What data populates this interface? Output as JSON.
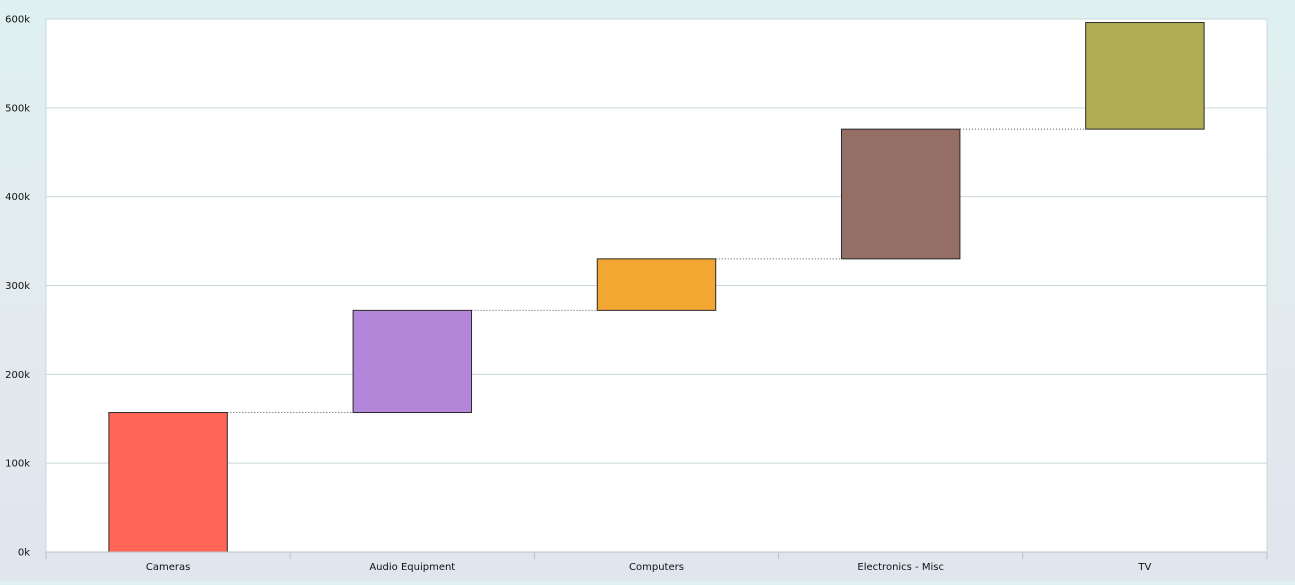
{
  "chart_data": {
    "type": "waterfall",
    "categories": [
      "Cameras",
      "Audio Equipment",
      "Computers",
      "Electronics - Misc",
      "TV"
    ],
    "series": [
      {
        "values": [
          157000,
          115000,
          58000,
          146000,
          120000
        ],
        "cumulative_end": [
          157000,
          272000,
          330000,
          476000,
          596000
        ]
      }
    ],
    "colors": [
      "#ff6655",
      "#b486d9",
      "#f2a733",
      "#956e66",
      "#b0ad53"
    ],
    "y_tick_labels": [
      "0k",
      "100k",
      "200k",
      "300k",
      "400k",
      "500k",
      "600k"
    ],
    "ylim": [
      0,
      600000
    ],
    "ytick_step": 100000,
    "title": "",
    "xlabel": "",
    "ylabel": "",
    "grid": true,
    "connector_lines": "dotted",
    "legend": "none"
  }
}
